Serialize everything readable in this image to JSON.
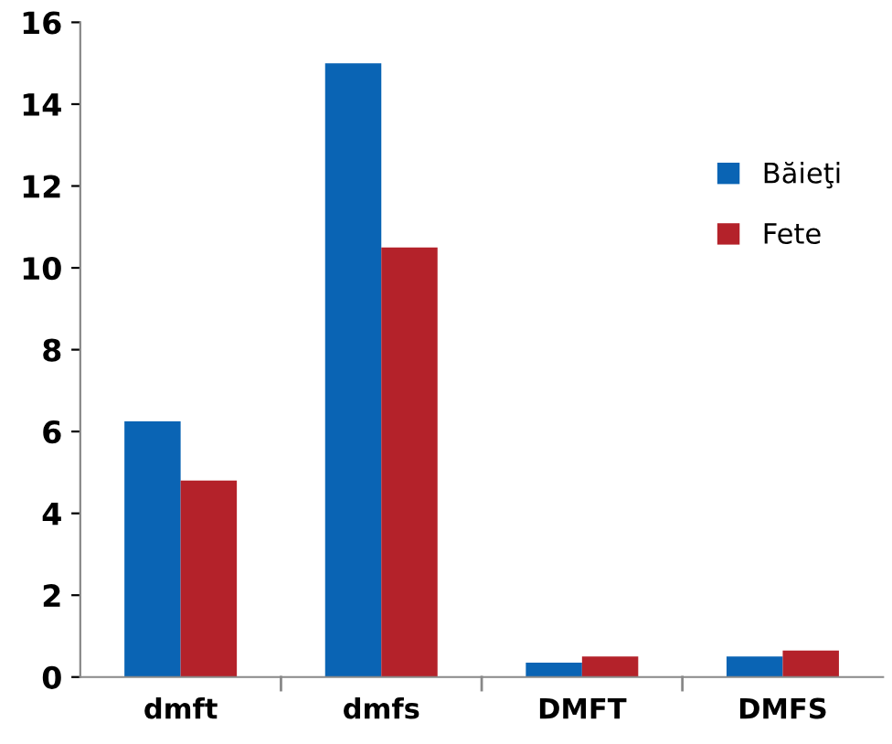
{
  "chart_data": {
    "type": "bar",
    "categories": [
      "dmft",
      "dmfs",
      "DMFT",
      "DMFS"
    ],
    "series": [
      {
        "name": "Băieţi",
        "color": "#0a64b4",
        "values": [
          6.25,
          15.0,
          0.35,
          0.5
        ]
      },
      {
        "name": "Fete",
        "color": "#b4222a",
        "values": [
          4.8,
          10.5,
          0.5,
          0.65
        ]
      }
    ],
    "ylim": [
      0,
      16
    ],
    "yticks": [
      0,
      2,
      4,
      6,
      8,
      10,
      12,
      14,
      16
    ],
    "grid": false,
    "legend": "right"
  }
}
